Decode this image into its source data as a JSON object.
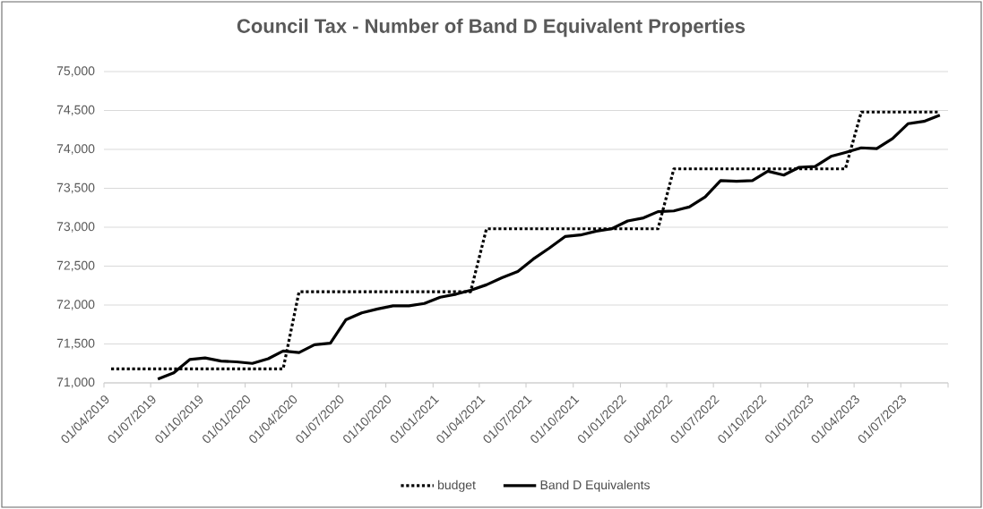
{
  "chart_data": {
    "type": "line",
    "title": "Council Tax - Number of Band D Equivalent Properties",
    "xlim": [
      "2019-04-01",
      "2023-10-01"
    ],
    "xticks": [
      {
        "value": "2019-04-01",
        "label": "01/04/2019"
      },
      {
        "value": "2019-07-01",
        "label": "01/07/2019"
      },
      {
        "value": "2019-10-01",
        "label": "01/10/2019"
      },
      {
        "value": "2020-01-01",
        "label": "01/01/2020"
      },
      {
        "value": "2020-04-01",
        "label": "01/04/2020"
      },
      {
        "value": "2020-07-01",
        "label": "01/07/2020"
      },
      {
        "value": "2020-10-01",
        "label": "01/10/2020"
      },
      {
        "value": "2021-01-01",
        "label": "01/01/2021"
      },
      {
        "value": "2021-04-01",
        "label": "01/04/2021"
      },
      {
        "value": "2021-07-01",
        "label": "01/07/2021"
      },
      {
        "value": "2021-10-01",
        "label": "01/10/2021"
      },
      {
        "value": "2022-01-01",
        "label": "01/01/2022"
      },
      {
        "value": "2022-04-01",
        "label": "01/04/2022"
      },
      {
        "value": "2022-07-01",
        "label": "01/07/2022"
      },
      {
        "value": "2022-10-01",
        "label": "01/10/2022"
      },
      {
        "value": "2023-01-01",
        "label": "01/01/2023"
      },
      {
        "value": "2023-04-01",
        "label": "01/04/2023"
      },
      {
        "value": "2023-07-01",
        "label": "01/07/2023"
      },
      {
        "value": "2023-10-01",
        "label": null
      }
    ],
    "ylim": [
      71000,
      75000
    ],
    "yticks": [
      {
        "value": 71000,
        "label": "71,000"
      },
      {
        "value": 71500,
        "label": "71,500"
      },
      {
        "value": 72000,
        "label": "72,000"
      },
      {
        "value": 72500,
        "label": "72,500"
      },
      {
        "value": 73000,
        "label": "73,000"
      },
      {
        "value": 73500,
        "label": "73,500"
      },
      {
        "value": 74000,
        "label": "74,000"
      },
      {
        "value": 74500,
        "label": "74,500"
      },
      {
        "value": 75000,
        "label": "75,000"
      }
    ],
    "grid": "y",
    "legend": "bottom",
    "marker": "none",
    "series": [
      {
        "name": "budget",
        "color": "#000000",
        "line_style": "dotted",
        "x": [
          "2019-04-15",
          "2019-05-15",
          "2019-06-15",
          "2019-07-15",
          "2019-08-15",
          "2019-09-15",
          "2019-10-15",
          "2019-11-15",
          "2019-12-15",
          "2020-01-15",
          "2020-02-15",
          "2020-03-15",
          "2020-04-15",
          "2020-05-15",
          "2020-06-15",
          "2020-07-15",
          "2020-08-15",
          "2020-09-15",
          "2020-10-15",
          "2020-11-15",
          "2020-12-15",
          "2021-01-15",
          "2021-02-15",
          "2021-03-15",
          "2021-04-15",
          "2021-05-15",
          "2021-06-15",
          "2021-07-15",
          "2021-08-15",
          "2021-09-15",
          "2021-10-15",
          "2021-11-15",
          "2021-12-15",
          "2022-01-15",
          "2022-02-15",
          "2022-03-15",
          "2022-04-15",
          "2022-05-15",
          "2022-06-15",
          "2022-07-15",
          "2022-08-15",
          "2022-09-15",
          "2022-10-15",
          "2022-11-15",
          "2022-12-15",
          "2023-01-15",
          "2023-02-15",
          "2023-03-15",
          "2023-04-15",
          "2023-05-15",
          "2023-06-15",
          "2023-07-15",
          "2023-08-15",
          "2023-09-15"
        ],
        "values": [
          71180,
          71180,
          71180,
          71180,
          71180,
          71180,
          71180,
          71180,
          71180,
          71180,
          71180,
          71180,
          72170,
          72170,
          72170,
          72170,
          72170,
          72170,
          72170,
          72170,
          72170,
          72170,
          72170,
          72170,
          72980,
          72980,
          72980,
          72980,
          72980,
          72980,
          72980,
          72980,
          72980,
          72980,
          72980,
          72980,
          73750,
          73750,
          73750,
          73750,
          73750,
          73750,
          73750,
          73750,
          73750,
          73750,
          73750,
          73750,
          74480,
          74480,
          74480,
          74480,
          74480,
          74480
        ]
      },
      {
        "name": "Band D Equivalents",
        "color": "#000000",
        "line_style": "solid",
        "x": [
          "2019-07-15",
          "2019-08-15",
          "2019-09-15",
          "2019-10-15",
          "2019-11-15",
          "2019-12-15",
          "2020-01-15",
          "2020-02-15",
          "2020-03-15",
          "2020-04-15",
          "2020-05-15",
          "2020-06-15",
          "2020-07-15",
          "2020-08-15",
          "2020-09-15",
          "2020-10-15",
          "2020-11-15",
          "2020-12-15",
          "2021-01-15",
          "2021-02-15",
          "2021-03-15",
          "2021-04-15",
          "2021-05-15",
          "2021-06-15",
          "2021-07-15",
          "2021-08-15",
          "2021-09-15",
          "2021-10-15",
          "2021-11-15",
          "2021-12-15",
          "2022-01-15",
          "2022-02-15",
          "2022-03-15",
          "2022-04-15",
          "2022-05-15",
          "2022-06-15",
          "2022-07-15",
          "2022-08-15",
          "2022-09-15",
          "2022-10-15",
          "2022-11-15",
          "2022-12-15",
          "2023-01-15",
          "2023-02-15",
          "2023-03-15",
          "2023-04-15",
          "2023-05-15",
          "2023-06-15",
          "2023-07-15",
          "2023-08-15",
          "2023-09-15"
        ],
        "values": [
          71050,
          71130,
          71300,
          71320,
          71280,
          71270,
          71250,
          71310,
          71410,
          71390,
          71490,
          71510,
          71810,
          71900,
          71950,
          71990,
          71990,
          72020,
          72100,
          72140,
          72190,
          72260,
          72350,
          72430,
          72590,
          72730,
          72880,
          72900,
          72950,
          72980,
          73080,
          73120,
          73200,
          73210,
          73260,
          73390,
          73600,
          73590,
          73600,
          73720,
          73670,
          73770,
          73780,
          73910,
          73960,
          74020,
          74010,
          74140,
          74330,
          74360,
          74440
        ]
      }
    ]
  }
}
